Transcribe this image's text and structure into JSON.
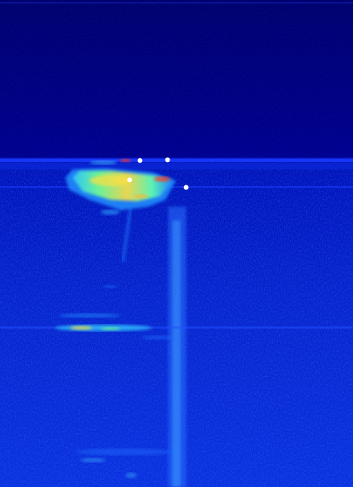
{
  "image": {
    "type": "sonar-echogram",
    "colormap": "jet",
    "colors": {
      "background_deep": "#000070",
      "background_upper": "#000092",
      "background_lower": "#0a2ad8",
      "seabed_line": "#1a3cff",
      "echo_low": "#20a0ff",
      "echo_mid": "#40ffd0",
      "echo_high": "#ffe040",
      "echo_peak": "#ff3020",
      "marker": "#ffffff"
    },
    "markers": [
      {
        "name": "marker-1"
      },
      {
        "name": "marker-2"
      },
      {
        "name": "marker-3"
      },
      {
        "name": "marker-4"
      }
    ]
  }
}
